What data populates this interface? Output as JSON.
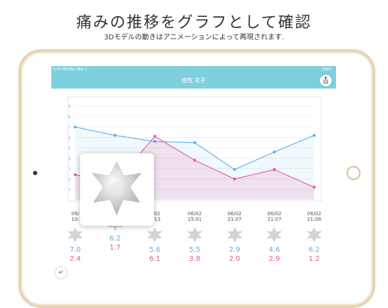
{
  "header": {
    "title": "痛みの推移をグラフとして確認",
    "subtitle": "3Dモデルの動きはアニメーションによって再現されます."
  },
  "status_bar": {
    "time": "5:07 PM",
    "date": "Mon Mar 1",
    "battery": "100%"
  },
  "nav": {
    "title": "感性 花子",
    "share_icon": "share-icon"
  },
  "columns": [
    {
      "date": "06/",
      "time": "10:",
      "v1": "7.0",
      "v2": "2.4"
    },
    {
      "date": "",
      "time": "",
      "v1": "6.2",
      "v2": "1.7"
    },
    {
      "date": "6/02",
      "time": "9:13",
      "v1": "5.6",
      "v2": "6.1"
    },
    {
      "date": "06/02",
      "time": "15:01",
      "v1": "5.5",
      "v2": "3.8"
    },
    {
      "date": "06/02",
      "time": "21:07",
      "v1": "2.9",
      "v2": "2.0"
    },
    {
      "date": "06/02",
      "time": "21:07",
      "v1": "4.6",
      "v2": "2.9"
    },
    {
      "date": "06/02",
      "time": "21:08",
      "v1": "6.2",
      "v2": "1.2"
    }
  ],
  "chart_data": {
    "type": "line",
    "x": [
      1,
      2,
      3,
      4,
      5,
      6,
      7
    ],
    "ylim": [
      0,
      10
    ],
    "y_ticks": [
      "1",
      "2",
      "3",
      "4",
      "5",
      "6",
      "7",
      "8",
      "9"
    ],
    "series": [
      {
        "values": [
          7.0,
          6.2,
          5.6,
          5.5,
          2.9,
          4.6,
          6.2
        ],
        "color": "#5ab0e4"
      },
      {
        "values": [
          2.4,
          1.7,
          6.1,
          3.8,
          2.0,
          2.9,
          1.2
        ],
        "color": "#e25a9a"
      }
    ]
  },
  "back_icon": "back-arrow-icon"
}
